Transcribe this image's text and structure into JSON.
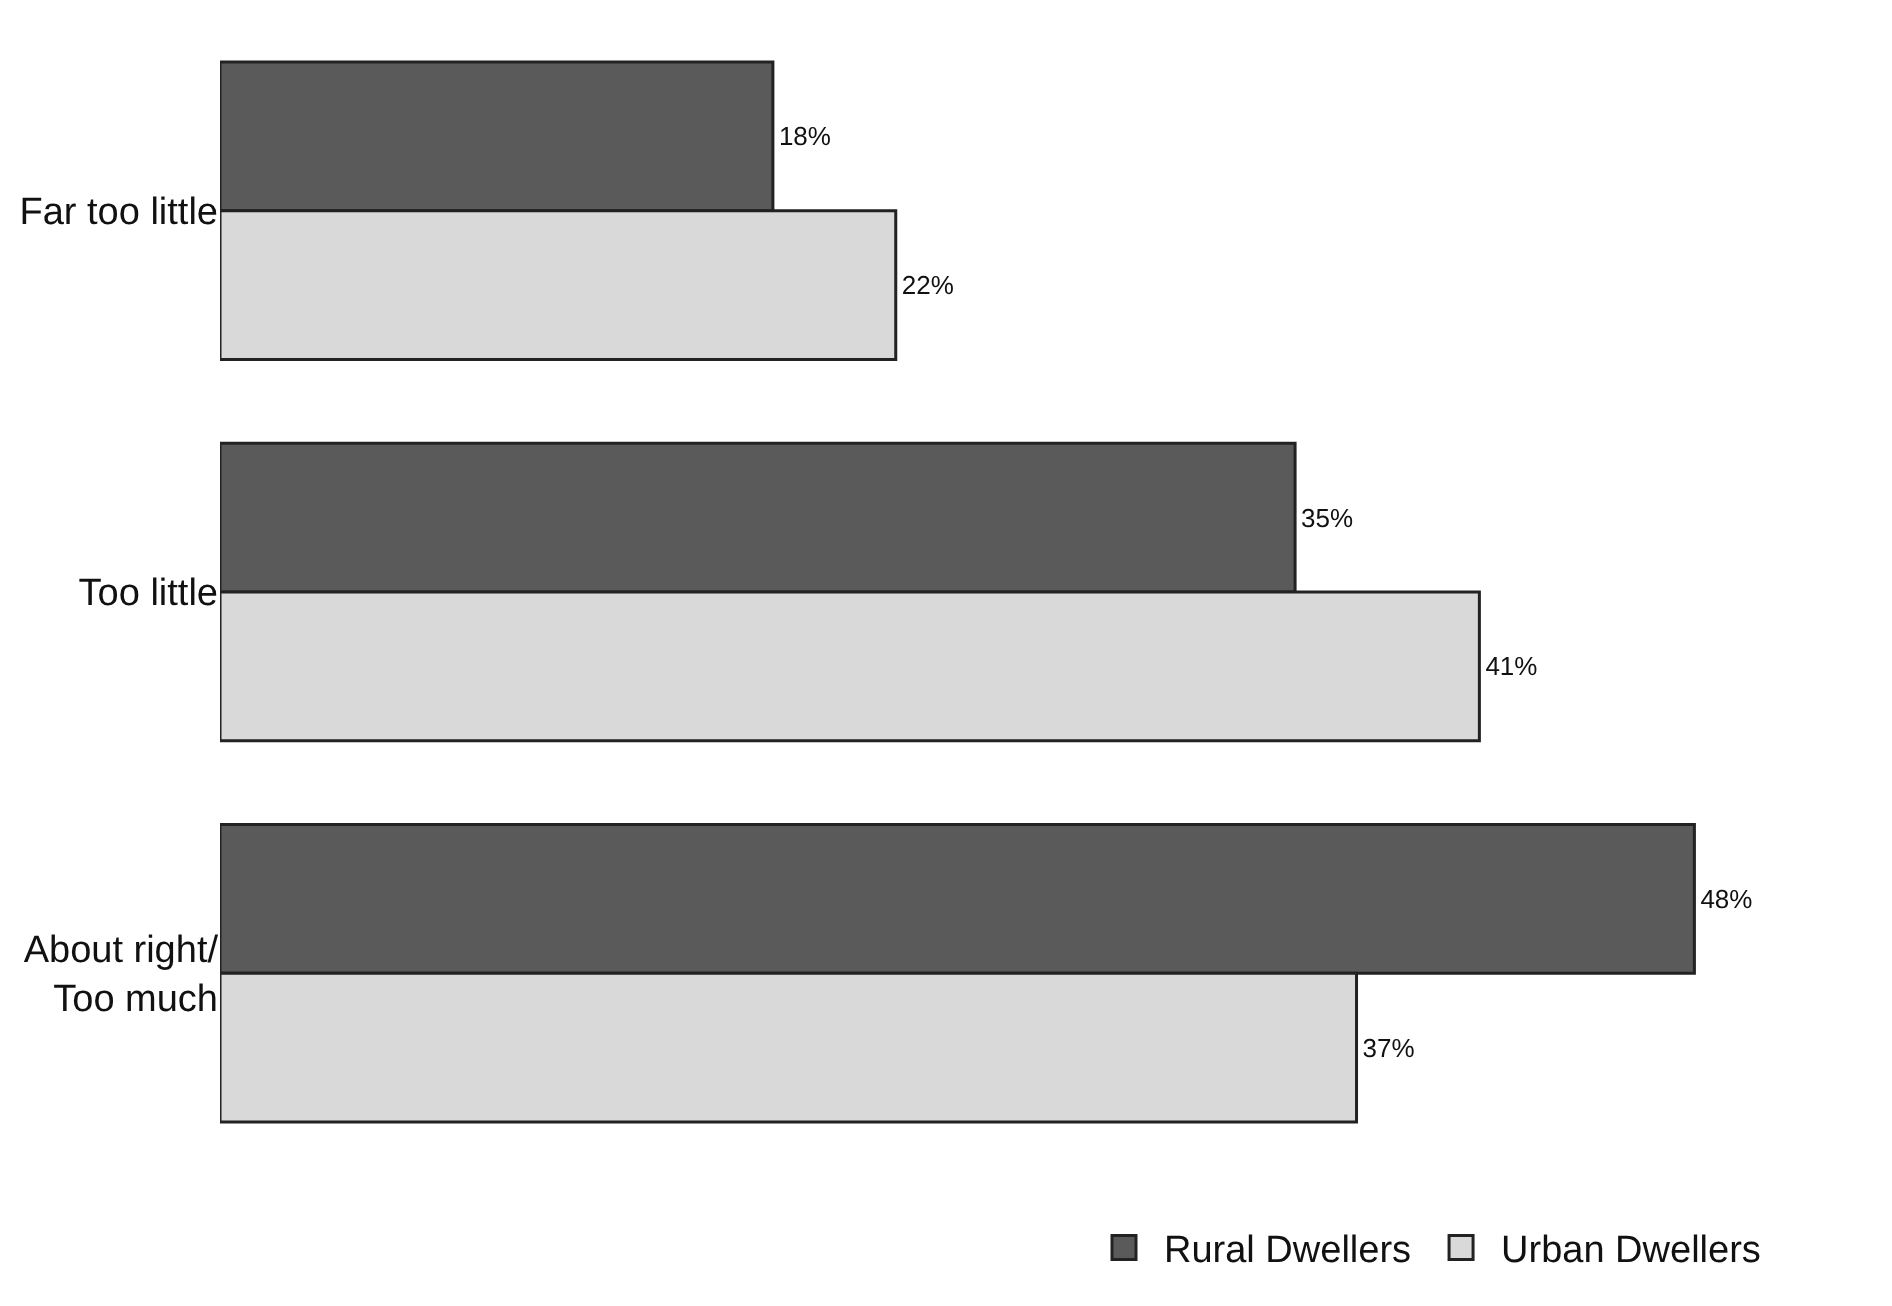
{
  "chart_data": {
    "type": "bar",
    "orientation": "horizontal",
    "categories": [
      "Far too little",
      "Too little",
      "About right/\nToo much"
    ],
    "series": [
      {
        "name": "Rural Dwellers",
        "color": "#5a5a5a",
        "values": [
          18,
          35,
          48
        ],
        "value_labels": [
          "18%",
          "35%",
          "48%"
        ]
      },
      {
        "name": "Urban Dwellers",
        "color": "#d9d9d9",
        "values": [
          22,
          41,
          37
        ],
        "value_labels": [
          "22%",
          "41%",
          "37%"
        ]
      }
    ],
    "legend": "bottom",
    "tick_labels": "y"
  }
}
